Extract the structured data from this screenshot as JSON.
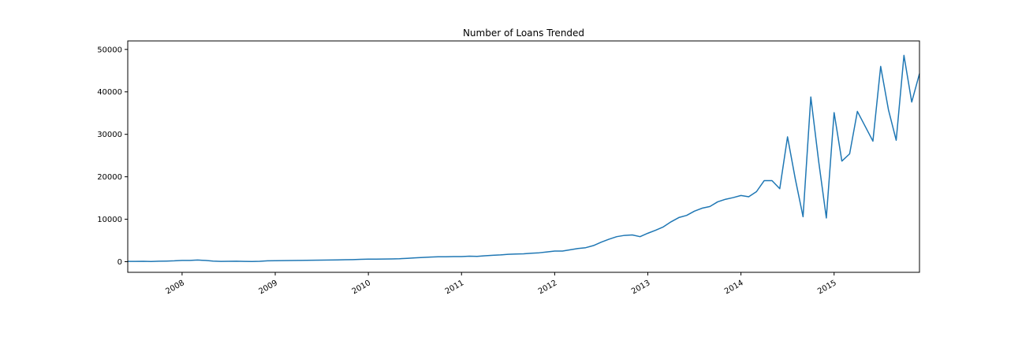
{
  "chart_data": {
    "type": "line",
    "title": "Number of Loans Trended",
    "xlabel": "",
    "ylabel": "",
    "color": "#1f77b4",
    "grid": false,
    "legend": "none",
    "x_tick_labels": [
      "2008",
      "2009",
      "2010",
      "2011",
      "2012",
      "2013",
      "2014",
      "2015"
    ],
    "y_tick_labels": [
      "0",
      "10000",
      "20000",
      "30000",
      "40000",
      "50000"
    ],
    "y_ticks": [
      0,
      10000,
      20000,
      30000,
      40000,
      50000
    ],
    "ylim": [
      -2500,
      52000
    ],
    "xlim": [
      "2007-06",
      "2015-12"
    ],
    "series": [
      {
        "x": [
          "2007-06",
          "2007-07",
          "2007-08",
          "2007-09",
          "2007-10",
          "2007-11",
          "2007-12",
          "2008-01",
          "2008-02",
          "2008-03",
          "2008-04",
          "2008-05",
          "2008-06",
          "2008-07",
          "2008-08",
          "2008-09",
          "2008-10",
          "2008-11",
          "2008-12",
          "2009-01",
          "2009-02",
          "2009-03",
          "2009-04",
          "2009-05",
          "2009-06",
          "2009-07",
          "2009-08",
          "2009-09",
          "2009-10",
          "2009-11",
          "2009-12",
          "2010-01",
          "2010-02",
          "2010-03",
          "2010-04",
          "2010-05",
          "2010-06",
          "2010-07",
          "2010-08",
          "2010-09",
          "2010-10",
          "2010-11",
          "2010-12",
          "2011-01",
          "2011-02",
          "2011-03",
          "2011-04",
          "2011-05",
          "2011-06",
          "2011-07",
          "2011-08",
          "2011-09",
          "2011-10",
          "2011-11",
          "2011-12",
          "2012-01",
          "2012-02",
          "2012-03",
          "2012-04",
          "2012-05",
          "2012-06",
          "2012-07",
          "2012-08",
          "2012-09",
          "2012-10",
          "2012-11",
          "2012-12",
          "2013-01",
          "2013-02",
          "2013-03",
          "2013-04",
          "2013-05",
          "2013-06",
          "2013-07",
          "2013-08",
          "2013-09",
          "2013-10",
          "2013-11",
          "2013-12",
          "2014-01",
          "2014-02",
          "2014-03",
          "2014-04",
          "2014-05",
          "2014-06",
          "2014-07",
          "2014-08",
          "2014-09",
          "2014-10",
          "2014-11",
          "2014-12",
          "2015-01",
          "2015-02",
          "2015-03",
          "2015-04",
          "2015-05",
          "2015-06",
          "2015-07",
          "2015-08",
          "2015-09",
          "2015-10",
          "2015-11",
          "2015-12"
        ],
        "values": [
          63,
          80,
          100,
          60,
          120,
          150,
          200,
          300,
          310,
          390,
          300,
          150,
          80,
          100,
          120,
          80,
          50,
          100,
          200,
          230,
          250,
          270,
          300,
          320,
          340,
          370,
          400,
          420,
          460,
          500,
          550,
          600,
          600,
          620,
          650,
          700,
          800,
          900,
          1000,
          1100,
          1150,
          1150,
          1200,
          1200,
          1300,
          1250,
          1400,
          1500,
          1600,
          1750,
          1800,
          1850,
          2000,
          2100,
          2300,
          2500,
          2500,
          2800,
          3100,
          3300,
          3800,
          4600,
          5300,
          5900,
          6200,
          6300,
          5900,
          6700,
          7400,
          8200,
          9400,
          10400,
          10900,
          11900,
          12600,
          13000,
          14100,
          14700,
          15100,
          15600,
          15300,
          16500,
          19100,
          19100,
          17200,
          29400,
          19500,
          10600,
          38800,
          23800,
          10300,
          35100,
          23700,
          25400,
          35400,
          31900,
          28400,
          46000,
          35800,
          28600,
          48600,
          37600,
          44300
        ]
      }
    ]
  }
}
